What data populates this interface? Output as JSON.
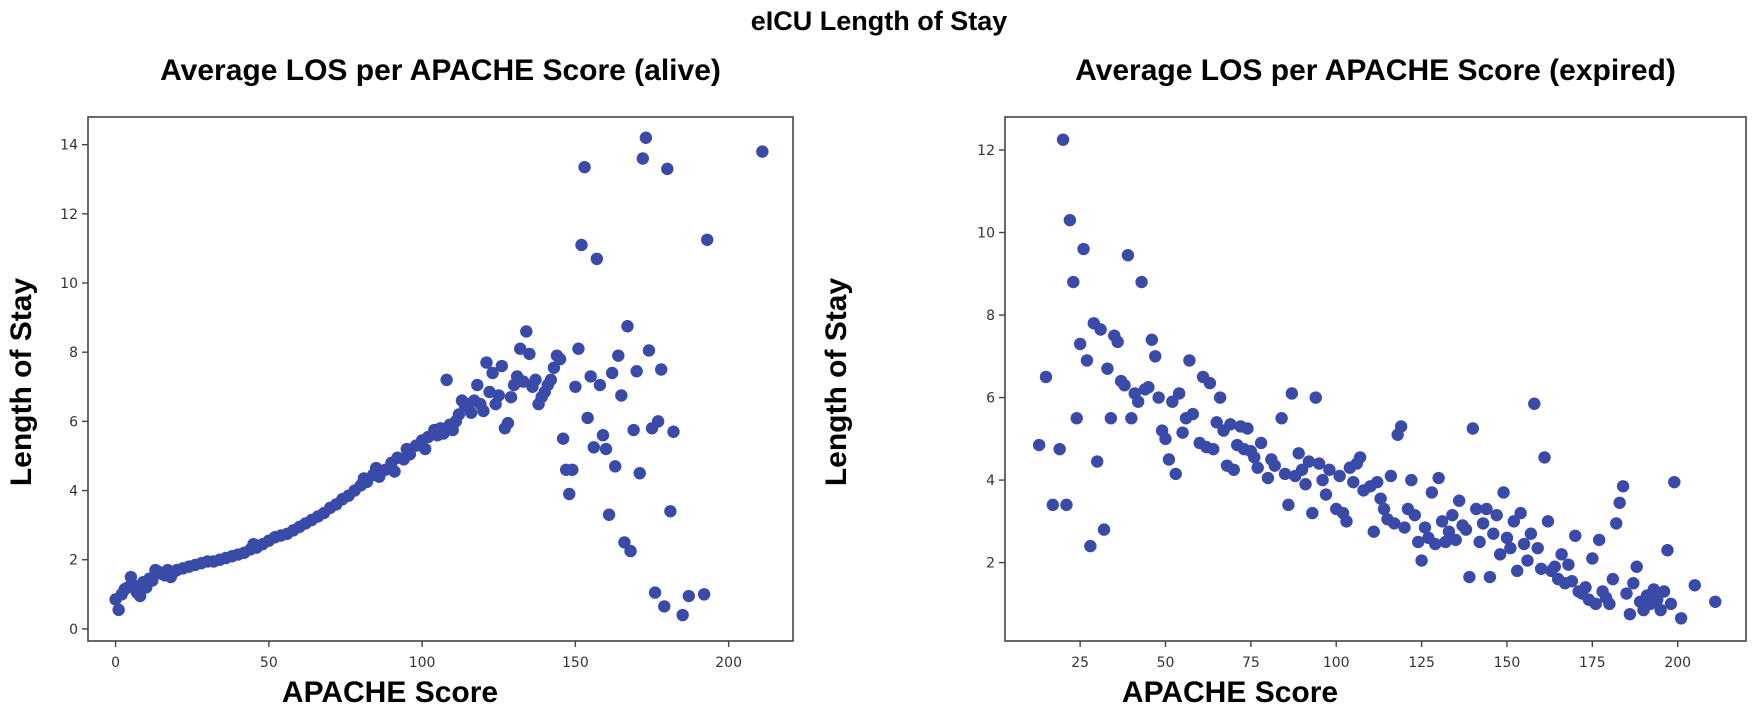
{
  "figure": {
    "title": "eICU Length of Stay",
    "marker_color": "#3a4aa8"
  },
  "chart_data": [
    {
      "type": "scatter",
      "title": "Average LOS per APACHE Score (alive)",
      "xlabel": "APACHE Score",
      "ylabel": "Length of Stay",
      "xlim": [
        -9,
        221
      ],
      "ylim": [
        -0.35,
        14.8
      ],
      "xticks": [
        0,
        50,
        100,
        150,
        200
      ],
      "yticks": [
        0,
        2,
        4,
        6,
        8,
        10,
        12,
        14
      ],
      "grid": false,
      "points": [
        [
          0,
          0.85
        ],
        [
          1,
          0.55
        ],
        [
          2,
          1.0
        ],
        [
          3,
          1.15
        ],
        [
          4,
          1.2
        ],
        [
          5,
          1.5
        ],
        [
          6,
          1.25
        ],
        [
          7,
          1.05
        ],
        [
          8,
          0.95
        ],
        [
          9,
          1.35
        ],
        [
          10,
          1.2
        ],
        [
          11,
          1.45
        ],
        [
          12,
          1.4
        ],
        [
          13,
          1.7
        ],
        [
          14,
          1.65
        ],
        [
          15,
          1.6
        ],
        [
          16,
          1.55
        ],
        [
          17,
          1.7
        ],
        [
          18,
          1.5
        ],
        [
          19,
          1.65
        ],
        [
          20,
          1.7
        ],
        [
          22,
          1.75
        ],
        [
          24,
          1.8
        ],
        [
          26,
          1.85
        ],
        [
          28,
          1.9
        ],
        [
          30,
          1.95
        ],
        [
          32,
          1.95
        ],
        [
          34,
          2.0
        ],
        [
          36,
          2.05
        ],
        [
          38,
          2.1
        ],
        [
          40,
          2.15
        ],
        [
          42,
          2.2
        ],
        [
          44,
          2.3
        ],
        [
          45,
          2.45
        ],
        [
          46,
          2.35
        ],
        [
          48,
          2.45
        ],
        [
          50,
          2.55
        ],
        [
          52,
          2.65
        ],
        [
          54,
          2.7
        ],
        [
          56,
          2.75
        ],
        [
          58,
          2.85
        ],
        [
          60,
          2.95
        ],
        [
          62,
          3.05
        ],
        [
          64,
          3.15
        ],
        [
          66,
          3.25
        ],
        [
          68,
          3.35
        ],
        [
          70,
          3.5
        ],
        [
          72,
          3.6
        ],
        [
          74,
          3.75
        ],
        [
          76,
          3.85
        ],
        [
          78,
          4.0
        ],
        [
          80,
          4.15
        ],
        [
          81,
          4.35
        ],
        [
          82,
          4.25
        ],
        [
          84,
          4.45
        ],
        [
          85,
          4.65
        ],
        [
          86,
          4.4
        ],
        [
          88,
          4.6
        ],
        [
          90,
          4.8
        ],
        [
          91,
          4.55
        ],
        [
          92,
          4.95
        ],
        [
          94,
          4.9
        ],
        [
          95,
          5.2
        ],
        [
          96,
          5.05
        ],
        [
          98,
          5.3
        ],
        [
          100,
          5.45
        ],
        [
          101,
          5.2
        ],
        [
          102,
          5.55
        ],
        [
          104,
          5.75
        ],
        [
          105,
          5.6
        ],
        [
          106,
          5.8
        ],
        [
          107,
          5.65
        ],
        [
          108,
          7.2
        ],
        [
          109,
          5.9
        ],
        [
          110,
          5.75
        ],
        [
          111,
          6.0
        ],
        [
          112,
          6.2
        ],
        [
          113,
          6.6
        ],
        [
          114,
          6.45
        ],
        [
          115,
          6.5
        ],
        [
          116,
          6.25
        ],
        [
          117,
          6.6
        ],
        [
          118,
          7.05
        ],
        [
          119,
          6.5
        ],
        [
          120,
          6.3
        ],
        [
          121,
          7.7
        ],
        [
          122,
          6.85
        ],
        [
          123,
          7.4
        ],
        [
          124,
          6.5
        ],
        [
          125,
          6.75
        ],
        [
          126,
          7.6
        ],
        [
          127,
          5.8
        ],
        [
          128,
          5.95
        ],
        [
          129,
          6.7
        ],
        [
          130,
          7.05
        ],
        [
          131,
          7.3
        ],
        [
          132,
          8.1
        ],
        [
          133,
          7.15
        ],
        [
          134,
          8.6
        ],
        [
          135,
          7.95
        ],
        [
          136,
          7.0
        ],
        [
          137,
          7.2
        ],
        [
          138,
          6.5
        ],
        [
          139,
          6.7
        ],
        [
          140,
          6.85
        ],
        [
          141,
          7.05
        ],
        [
          142,
          7.2
        ],
        [
          143,
          7.55
        ],
        [
          144,
          7.9
        ],
        [
          145,
          7.8
        ],
        [
          146,
          5.5
        ],
        [
          147,
          4.6
        ],
        [
          148,
          3.9
        ],
        [
          149,
          4.6
        ],
        [
          150,
          7.0
        ],
        [
          151,
          8.1
        ],
        [
          152,
          11.1
        ],
        [
          153,
          13.35
        ],
        [
          154,
          6.1
        ],
        [
          155,
          7.3
        ],
        [
          156,
          5.25
        ],
        [
          157,
          10.7
        ],
        [
          158,
          7.05
        ],
        [
          159,
          5.6
        ],
        [
          160,
          5.2
        ],
        [
          161,
          3.3
        ],
        [
          162,
          7.4
        ],
        [
          163,
          4.7
        ],
        [
          164,
          7.9
        ],
        [
          165,
          6.75
        ],
        [
          166,
          2.5
        ],
        [
          167,
          8.75
        ],
        [
          168,
          2.25
        ],
        [
          169,
          5.75
        ],
        [
          170,
          7.45
        ],
        [
          171,
          4.5
        ],
        [
          172,
          13.6
        ],
        [
          173,
          14.2
        ],
        [
          174,
          8.05
        ],
        [
          175,
          5.8
        ],
        [
          176,
          1.05
        ],
        [
          177,
          6.0
        ],
        [
          178,
          7.5
        ],
        [
          179,
          0.65
        ],
        [
          180,
          13.3
        ],
        [
          181,
          3.4
        ],
        [
          182,
          5.7
        ],
        [
          185,
          0.4
        ],
        [
          187,
          0.95
        ],
        [
          192,
          1.0
        ],
        [
          193,
          11.25
        ],
        [
          211,
          13.8
        ]
      ]
    },
    {
      "type": "scatter",
      "title": "Average LOS per APACHE Score (expired)",
      "xlabel": "APACHE Score",
      "ylabel": "Length of Stay",
      "xlim": [
        3,
        220
      ],
      "ylim": [
        0.1,
        12.8
      ],
      "xticks": [
        25,
        50,
        75,
        100,
        125,
        150,
        175,
        200
      ],
      "yticks": [
        2,
        4,
        6,
        8,
        10,
        12
      ],
      "grid": false,
      "points": [
        [
          13,
          4.85
        ],
        [
          15,
          6.5
        ],
        [
          17,
          3.4
        ],
        [
          19,
          4.75
        ],
        [
          20,
          12.25
        ],
        [
          21,
          3.4
        ],
        [
          22,
          10.3
        ],
        [
          23,
          8.8
        ],
        [
          24,
          5.5
        ],
        [
          25,
          7.3
        ],
        [
          26,
          9.6
        ],
        [
          27,
          6.9
        ],
        [
          28,
          2.4
        ],
        [
          29,
          7.8
        ],
        [
          30,
          4.45
        ],
        [
          31,
          7.65
        ],
        [
          32,
          2.8
        ],
        [
          33,
          6.7
        ],
        [
          34,
          5.5
        ],
        [
          35,
          7.5
        ],
        [
          36,
          7.35
        ],
        [
          37,
          6.4
        ],
        [
          38,
          6.3
        ],
        [
          39,
          9.45
        ],
        [
          40,
          5.5
        ],
        [
          41,
          6.1
        ],
        [
          42,
          5.9
        ],
        [
          43,
          8.8
        ],
        [
          44,
          6.2
        ],
        [
          45,
          6.25
        ],
        [
          46,
          7.4
        ],
        [
          47,
          7.0
        ],
        [
          48,
          6.0
        ],
        [
          49,
          5.2
        ],
        [
          50,
          5.0
        ],
        [
          51,
          4.5
        ],
        [
          52,
          5.9
        ],
        [
          53,
          4.15
        ],
        [
          54,
          6.1
        ],
        [
          55,
          5.15
        ],
        [
          56,
          5.5
        ],
        [
          57,
          6.9
        ],
        [
          58,
          5.6
        ],
        [
          60,
          4.9
        ],
        [
          61,
          6.5
        ],
        [
          62,
          4.8
        ],
        [
          63,
          6.35
        ],
        [
          64,
          4.75
        ],
        [
          65,
          5.4
        ],
        [
          66,
          6.0
        ],
        [
          67,
          5.2
        ],
        [
          68,
          4.35
        ],
        [
          69,
          5.35
        ],
        [
          70,
          4.25
        ],
        [
          71,
          4.85
        ],
        [
          72,
          5.3
        ],
        [
          73,
          4.75
        ],
        [
          74,
          5.25
        ],
        [
          75,
          4.7
        ],
        [
          76,
          4.55
        ],
        [
          77,
          4.3
        ],
        [
          78,
          4.9
        ],
        [
          80,
          4.05
        ],
        [
          81,
          4.5
        ],
        [
          82,
          4.35
        ],
        [
          84,
          5.5
        ],
        [
          85,
          4.15
        ],
        [
          86,
          3.4
        ],
        [
          87,
          6.1
        ],
        [
          88,
          4.1
        ],
        [
          89,
          4.65
        ],
        [
          90,
          4.25
        ],
        [
          91,
          3.9
        ],
        [
          92,
          4.45
        ],
        [
          93,
          3.2
        ],
        [
          94,
          6.0
        ],
        [
          95,
          4.4
        ],
        [
          96,
          4.0
        ],
        [
          97,
          3.65
        ],
        [
          98,
          4.25
        ],
        [
          100,
          3.3
        ],
        [
          101,
          4.1
        ],
        [
          102,
          3.2
        ],
        [
          103,
          3.0
        ],
        [
          104,
          4.3
        ],
        [
          105,
          3.95
        ],
        [
          106,
          4.4
        ],
        [
          107,
          4.55
        ],
        [
          108,
          3.75
        ],
        [
          110,
          3.85
        ],
        [
          111,
          2.75
        ],
        [
          112,
          3.95
        ],
        [
          113,
          3.55
        ],
        [
          114,
          3.3
        ],
        [
          115,
          3.05
        ],
        [
          116,
          4.1
        ],
        [
          117,
          2.95
        ],
        [
          118,
          5.1
        ],
        [
          119,
          5.3
        ],
        [
          120,
          2.85
        ],
        [
          121,
          3.3
        ],
        [
          122,
          4.0
        ],
        [
          123,
          3.15
        ],
        [
          124,
          2.5
        ],
        [
          125,
          2.05
        ],
        [
          126,
          2.85
        ],
        [
          127,
          2.6
        ],
        [
          128,
          3.7
        ],
        [
          129,
          2.45
        ],
        [
          130,
          4.05
        ],
        [
          131,
          3.0
        ],
        [
          132,
          2.5
        ],
        [
          133,
          2.75
        ],
        [
          134,
          3.15
        ],
        [
          135,
          2.55
        ],
        [
          136,
          3.5
        ],
        [
          137,
          2.9
        ],
        [
          138,
          2.8
        ],
        [
          139,
          1.65
        ],
        [
          140,
          5.25
        ],
        [
          141,
          3.3
        ],
        [
          142,
          2.5
        ],
        [
          143,
          2.95
        ],
        [
          144,
          3.3
        ],
        [
          145,
          1.65
        ],
        [
          146,
          2.7
        ],
        [
          147,
          3.15
        ],
        [
          148,
          2.2
        ],
        [
          149,
          3.7
        ],
        [
          150,
          2.6
        ],
        [
          151,
          2.35
        ],
        [
          152,
          3.0
        ],
        [
          153,
          1.8
        ],
        [
          154,
          3.2
        ],
        [
          155,
          2.45
        ],
        [
          156,
          2.05
        ],
        [
          157,
          2.7
        ],
        [
          158,
          5.85
        ],
        [
          159,
          2.35
        ],
        [
          160,
          1.85
        ],
        [
          161,
          4.55
        ],
        [
          162,
          3.0
        ],
        [
          163,
          1.8
        ],
        [
          164,
          1.9
        ],
        [
          165,
          1.6
        ],
        [
          166,
          2.2
        ],
        [
          167,
          1.5
        ],
        [
          168,
          1.95
        ],
        [
          169,
          1.55
        ],
        [
          170,
          2.65
        ],
        [
          171,
          1.3
        ],
        [
          172,
          1.25
        ],
        [
          173,
          1.4
        ],
        [
          174,
          1.1
        ],
        [
          175,
          2.1
        ],
        [
          176,
          1.0
        ],
        [
          177,
          2.55
        ],
        [
          178,
          1.3
        ],
        [
          179,
          1.15
        ],
        [
          180,
          1.0
        ],
        [
          181,
          1.6
        ],
        [
          182,
          2.95
        ],
        [
          183,
          3.45
        ],
        [
          184,
          3.85
        ],
        [
          185,
          1.25
        ],
        [
          186,
          0.75
        ],
        [
          187,
          1.5
        ],
        [
          188,
          1.9
        ],
        [
          189,
          1.05
        ],
        [
          190,
          0.85
        ],
        [
          191,
          1.2
        ],
        [
          192,
          1.0
        ],
        [
          193,
          1.35
        ],
        [
          194,
          1.1
        ],
        [
          195,
          0.85
        ],
        [
          196,
          1.3
        ],
        [
          197,
          2.3
        ],
        [
          198,
          1.0
        ],
        [
          199,
          3.95
        ],
        [
          201,
          0.65
        ],
        [
          205,
          1.45
        ],
        [
          211,
          1.05
        ]
      ]
    }
  ]
}
